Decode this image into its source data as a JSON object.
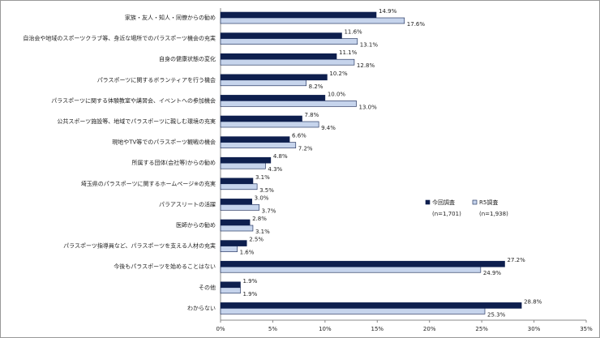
{
  "chart_data": {
    "type": "hbar",
    "categories": [
      "家族・友人・知人・同僚からの勧め",
      "自治会や地域のスポーツクラブ等、身近な場所でのパラスポーツ機会の充実",
      "自身の健康状態の変化",
      "パラスポーツに関するボランティアを行う機会",
      "パラスポーツに関する体験教室や講習会、イベントへの参加機会",
      "公共スポーツ施設等、地域でパラスポーツに親しむ環境の充実",
      "現地やTV等でのパラスポーツ観戦の機会",
      "所属する団体(会社等)からの勧め",
      "埼玉県のパラスポーツに関するホームページ※の充実",
      "パラアスリートの活躍",
      "医師からの勧め",
      "パラスポーツ指導員など、パラスポーツを支える人材の充実",
      "今後もパラスポーツを始めることはない",
      "その他",
      "わからない"
    ],
    "series": [
      {
        "name": "今回調査",
        "note": "(n=1,701)",
        "color": "#0e1f4e",
        "values": [
          14.9,
          11.6,
          11.1,
          10.2,
          10.0,
          7.8,
          6.6,
          4.8,
          3.1,
          3.0,
          2.8,
          2.5,
          27.2,
          1.9,
          28.8
        ],
        "value_labels": [
          "14.9%",
          "11.6%",
          "11.1%",
          "10.2%",
          "10.0%",
          "7.8%",
          "6.6%",
          "4.8%",
          "3.1%",
          "3.0%",
          "2.8%",
          "2.5%",
          "27.2%",
          "1.9%",
          "28.8%"
        ]
      },
      {
        "name": "R5調査",
        "note": "(n=1,938)",
        "color": "#c6d4ec",
        "values": [
          17.6,
          13.1,
          12.8,
          8.2,
          13.0,
          9.4,
          7.2,
          4.3,
          3.5,
          3.7,
          3.1,
          1.6,
          24.9,
          1.9,
          25.3
        ],
        "value_labels": [
          "17.6%",
          "13.1%",
          "12.8%",
          "8.2%",
          "13.0%",
          "9.4%",
          "7.2%",
          "4.3%",
          "3.5%",
          "3.7%",
          "3.1%",
          "1.6%",
          "24.9%",
          "1.9%",
          "25.3%"
        ]
      }
    ],
    "xlim": [
      0,
      35
    ],
    "xticks": [
      {
        "value": 0,
        "label": "0%"
      },
      {
        "value": 5,
        "label": "5%"
      },
      {
        "value": 10,
        "label": "10%"
      },
      {
        "value": 15,
        "label": "15%"
      },
      {
        "value": 20,
        "label": "20%"
      },
      {
        "value": 25,
        "label": "25%"
      },
      {
        "value": 30,
        "label": "30%"
      },
      {
        "value": 35,
        "label": "35%"
      }
    ],
    "grid": false
  }
}
